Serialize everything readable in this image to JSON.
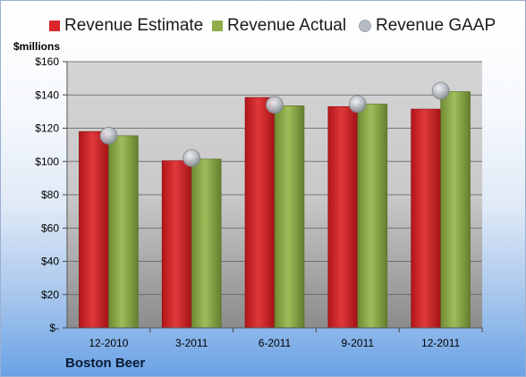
{
  "unit_label": "$millions",
  "brand": "Boston Beer",
  "legend": [
    {
      "label": "Revenue Estimate",
      "color": "#d8262a"
    },
    {
      "label": "Revenue Actual",
      "color": "#8fae4b"
    },
    {
      "label": "Revenue GAAP",
      "color": "#b7bcc4"
    }
  ],
  "chart_data": {
    "type": "bar",
    "categories": [
      "12-2010",
      "3-2011",
      "6-2011",
      "9-2011",
      "12-2011"
    ],
    "series": [
      {
        "name": "Revenue Estimate",
        "type": "bar",
        "values": [
          118,
          100.5,
          138.5,
          133,
          131.5
        ],
        "color": "#d8262a"
      },
      {
        "name": "Revenue Actual",
        "type": "bar",
        "values": [
          115.5,
          101.5,
          133.5,
          134.5,
          142
        ],
        "color": "#8fae4b"
      },
      {
        "name": "Revenue GAAP",
        "type": "scatter",
        "values": [
          115.5,
          102,
          134,
          134.5,
          142.5
        ],
        "color": "#b7bcc4"
      }
    ],
    "ylabel": "$millions",
    "ylim": [
      0,
      160
    ],
    "yticks": [
      0,
      20,
      40,
      60,
      80,
      100,
      120,
      140,
      160
    ],
    "ytick_labels": [
      "$-",
      "$20",
      "$40",
      "$60",
      "$80",
      "$100",
      "$120",
      "$140",
      "$160"
    ],
    "grid": true,
    "legend_position": "top"
  }
}
